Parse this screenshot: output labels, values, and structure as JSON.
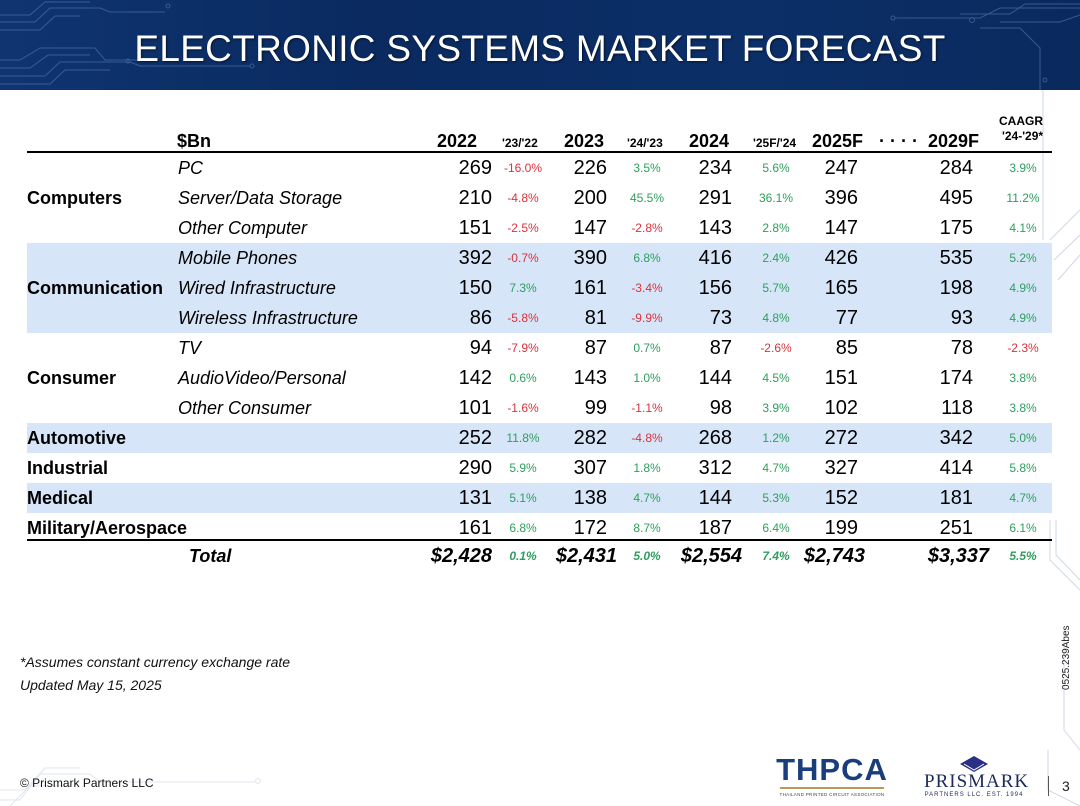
{
  "title": "ELECTRONIC SYSTEMS MARKET FORECAST",
  "colors": {
    "banner": "#0b2c63",
    "shade": "#d6e6f8",
    "positive": "#2e9e5e",
    "negative": "#d9323b"
  },
  "table": {
    "headers": {
      "unit": "$Bn",
      "y2022": "2022",
      "g2322": "'23/'22",
      "y2023": "2023",
      "g2423": "'24/'23",
      "y2024": "2024",
      "g25f24": "'25F/'24",
      "y2025f": "2025F",
      "dots": "· · · ·",
      "y2029f": "2029F",
      "caagr1": "CAAGR",
      "caagr2": "'24-'29*"
    },
    "rows": [
      {
        "group": "",
        "sub": "PC",
        "v2022": "269",
        "g1": "-16.0%",
        "v2023": "226",
        "g2": "3.5%",
        "v2024": "234",
        "g3": "5.6%",
        "v2025": "247",
        "v2029": "284",
        "cagr": "3.9%"
      },
      {
        "group": "Computers",
        "sub": "Server/Data Storage",
        "v2022": "210",
        "g1": "-4.8%",
        "v2023": "200",
        "g2": "45.5%",
        "v2024": "291",
        "g3": "36.1%",
        "v2025": "396",
        "v2029": "495",
        "cagr": "11.2%"
      },
      {
        "group": "",
        "sub": "Other Computer",
        "v2022": "151",
        "g1": "-2.5%",
        "v2023": "147",
        "g2": "-2.8%",
        "v2024": "143",
        "g3": "2.8%",
        "v2025": "147",
        "v2029": "175",
        "cagr": "4.1%"
      },
      {
        "group": "",
        "sub": "Mobile Phones",
        "v2022": "392",
        "g1": "-0.7%",
        "v2023": "390",
        "g2": "6.8%",
        "v2024": "416",
        "g3": "2.4%",
        "v2025": "426",
        "v2029": "535",
        "cagr": "5.2%"
      },
      {
        "group": "Communication",
        "sub": "Wired Infrastructure",
        "v2022": "150",
        "g1": "7.3%",
        "v2023": "161",
        "g2": "-3.4%",
        "v2024": "156",
        "g3": "5.7%",
        "v2025": "165",
        "v2029": "198",
        "cagr": "4.9%"
      },
      {
        "group": "",
        "sub": "Wireless Infrastructure",
        "v2022": "86",
        "g1": "-5.8%",
        "v2023": "81",
        "g2": "-9.9%",
        "v2024": "73",
        "g3": "4.8%",
        "v2025": "77",
        "v2029": "93",
        "cagr": "4.9%"
      },
      {
        "group": "",
        "sub": "TV",
        "v2022": "94",
        "g1": "-7.9%",
        "v2023": "87",
        "g2": "0.7%",
        "v2024": "87",
        "g3": "-2.6%",
        "v2025": "85",
        "v2029": "78",
        "cagr": "-2.3%"
      },
      {
        "group": "Consumer",
        "sub": "AudioVideo/Personal",
        "v2022": "142",
        "g1": "0.6%",
        "v2023": "143",
        "g2": "1.0%",
        "v2024": "144",
        "g3": "4.5%",
        "v2025": "151",
        "v2029": "174",
        "cagr": "3.8%"
      },
      {
        "group": "",
        "sub": "Other Consumer",
        "v2022": "101",
        "g1": "-1.6%",
        "v2023": "99",
        "g2": "-1.1%",
        "v2024": "98",
        "g3": "3.9%",
        "v2025": "102",
        "v2029": "118",
        "cagr": "3.8%"
      },
      {
        "group": "Automotive",
        "sub": "",
        "v2022": "252",
        "g1": "11.8%",
        "v2023": "282",
        "g2": "-4.8%",
        "v2024": "268",
        "g3": "1.2%",
        "v2025": "272",
        "v2029": "342",
        "cagr": "5.0%"
      },
      {
        "group": "Industrial",
        "sub": "",
        "v2022": "290",
        "g1": "5.9%",
        "v2023": "307",
        "g2": "1.8%",
        "v2024": "312",
        "g3": "4.7%",
        "v2025": "327",
        "v2029": "414",
        "cagr": "5.8%"
      },
      {
        "group": "Medical",
        "sub": "",
        "v2022": "131",
        "g1": "5.1%",
        "v2023": "138",
        "g2": "4.7%",
        "v2024": "144",
        "g3": "5.3%",
        "v2025": "152",
        "v2029": "181",
        "cagr": "4.7%"
      },
      {
        "group": "Military/Aerospace",
        "sub": "",
        "v2022": "161",
        "g1": "6.8%",
        "v2023": "172",
        "g2": "8.7%",
        "v2024": "187",
        "g3": "6.4%",
        "v2025": "199",
        "v2029": "251",
        "cagr": "6.1%"
      }
    ],
    "total": {
      "label": "Total",
      "v2022": "$2,428",
      "g1": "0.1%",
      "v2023": "$2,431",
      "g2": "5.0%",
      "v2024": "$2,554",
      "g3": "7.4%",
      "v2025": "$2,743",
      "v2029": "$3,337",
      "cagr": "5.5%"
    }
  },
  "notes": {
    "assumption": "*Assumes constant currency exchange rate",
    "updated": "Updated May 15, 2025"
  },
  "footer": {
    "copyright": "© Prismark Partners LLC",
    "side_code": "0525.239Abes",
    "page": "3",
    "thpca_logo": "THPCA",
    "thpca_sub": "THAILAND PRINTED CIRCUIT ASSOCIATION",
    "prismark_logo": "PRISMARK",
    "prismark_sub": "PARTNERS LLC. EST. 1994"
  }
}
